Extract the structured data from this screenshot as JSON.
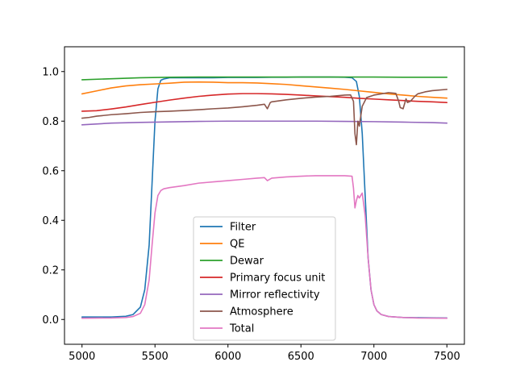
{
  "chart_data": {
    "type": "line",
    "title": "",
    "xlabel": "",
    "ylabel": "",
    "xlim": [
      4880,
      7620
    ],
    "ylim": [
      -0.1,
      1.1
    ],
    "xticks": [
      5000,
      5500,
      6000,
      6500,
      7000,
      7500
    ],
    "yticks": [
      0.0,
      0.2,
      0.4,
      0.6,
      0.8,
      1.0
    ],
    "xtick_labels": [
      "5000",
      "5500",
      "6000",
      "6500",
      "7000",
      "7500"
    ],
    "ytick_labels": [
      "0.0",
      "0.2",
      "0.4",
      "0.6",
      "0.8",
      "1.0"
    ],
    "grid": false,
    "legend_position": "lower-center",
    "series": [
      {
        "name": "Filter",
        "color": "#1f77b4",
        "x": [
          5000,
          5200,
          5300,
          5350,
          5400,
          5430,
          5460,
          5480,
          5500,
          5520,
          5540,
          5560,
          5600,
          5700,
          5800,
          5900,
          6000,
          6100,
          6200,
          6300,
          6400,
          6500,
          6600,
          6700,
          6800,
          6850,
          6880,
          6900,
          6920,
          6940,
          6960,
          6980,
          7000,
          7020,
          7050,
          7100,
          7200,
          7300,
          7500
        ],
        "y": [
          0.01,
          0.01,
          0.013,
          0.02,
          0.05,
          0.12,
          0.3,
          0.55,
          0.8,
          0.93,
          0.965,
          0.97,
          0.975,
          0.975,
          0.975,
          0.975,
          0.976,
          0.976,
          0.976,
          0.977,
          0.977,
          0.978,
          0.978,
          0.978,
          0.977,
          0.975,
          0.96,
          0.9,
          0.75,
          0.5,
          0.25,
          0.12,
          0.06,
          0.035,
          0.02,
          0.012,
          0.008,
          0.007,
          0.006
        ]
      },
      {
        "name": "QE",
        "color": "#ff7f0e",
        "x": [
          5000,
          5100,
          5200,
          5300,
          5400,
          5500,
          5600,
          5700,
          5800,
          5900,
          6000,
          6100,
          6200,
          6300,
          6400,
          6500,
          6600,
          6700,
          6800,
          6900,
          7000,
          7100,
          7200,
          7300,
          7400,
          7500
        ],
        "y": [
          0.91,
          0.922,
          0.934,
          0.942,
          0.947,
          0.95,
          0.953,
          0.957,
          0.958,
          0.957,
          0.955,
          0.955,
          0.954,
          0.951,
          0.948,
          0.943,
          0.938,
          0.933,
          0.928,
          0.922,
          0.916,
          0.91,
          0.905,
          0.9,
          0.896,
          0.893
        ]
      },
      {
        "name": "Dewar",
        "color": "#2ca02c",
        "x": [
          5000,
          5200,
          5400,
          5600,
          5800,
          6000,
          6200,
          6400,
          6600,
          6800,
          7000,
          7200,
          7400,
          7500
        ],
        "y": [
          0.967,
          0.971,
          0.975,
          0.977,
          0.978,
          0.978,
          0.978,
          0.978,
          0.978,
          0.978,
          0.978,
          0.977,
          0.977,
          0.977
        ]
      },
      {
        "name": "Primary focus unit",
        "color": "#d62728",
        "x": [
          5000,
          5100,
          5200,
          5300,
          5400,
          5500,
          5600,
          5700,
          5800,
          5900,
          6000,
          6100,
          6200,
          6300,
          6400,
          6500,
          6600,
          6700,
          6800,
          6900,
          7000,
          7100,
          7200,
          7300,
          7400,
          7500
        ],
        "y": [
          0.84,
          0.842,
          0.849,
          0.857,
          0.867,
          0.876,
          0.885,
          0.893,
          0.9,
          0.905,
          0.909,
          0.911,
          0.911,
          0.91,
          0.908,
          0.905,
          0.902,
          0.899,
          0.896,
          0.892,
          0.889,
          0.886,
          0.883,
          0.88,
          0.878,
          0.875
        ]
      },
      {
        "name": "Mirror reflectivity",
        "color": "#9467bd",
        "x": [
          5000,
          5200,
          5400,
          5600,
          5800,
          6000,
          6200,
          6400,
          6600,
          6800,
          7000,
          7200,
          7400,
          7500
        ],
        "y": [
          0.785,
          0.792,
          0.795,
          0.797,
          0.799,
          0.8,
          0.8,
          0.8,
          0.8,
          0.799,
          0.798,
          0.796,
          0.794,
          0.792
        ]
      },
      {
        "name": "Atmosphere",
        "color": "#8c564b",
        "x": [
          5000,
          5050,
          5100,
          5200,
          5300,
          5400,
          5500,
          5600,
          5700,
          5800,
          5900,
          6000,
          6100,
          6200,
          6250,
          6270,
          6290,
          6300,
          6400,
          6500,
          6600,
          6700,
          6800,
          6840,
          6860,
          6870,
          6880,
          6890,
          6900,
          6920,
          6950,
          7000,
          7050,
          7100,
          7150,
          7170,
          7180,
          7200,
          7220,
          7230,
          7250,
          7280,
          7300,
          7350,
          7400,
          7500
        ],
        "y": [
          0.812,
          0.815,
          0.82,
          0.826,
          0.83,
          0.835,
          0.838,
          0.84,
          0.843,
          0.846,
          0.85,
          0.853,
          0.858,
          0.864,
          0.868,
          0.85,
          0.875,
          0.878,
          0.886,
          0.892,
          0.897,
          0.9,
          0.905,
          0.906,
          0.88,
          0.75,
          0.705,
          0.8,
          0.78,
          0.86,
          0.895,
          0.905,
          0.91,
          0.915,
          0.912,
          0.88,
          0.855,
          0.85,
          0.89,
          0.875,
          0.88,
          0.9,
          0.91,
          0.918,
          0.923,
          0.928
        ]
      },
      {
        "name": "Total",
        "color": "#e377c2",
        "x": [
          5000,
          5200,
          5300,
          5350,
          5400,
          5430,
          5460,
          5480,
          5500,
          5520,
          5540,
          5560,
          5600,
          5700,
          5800,
          5900,
          6000,
          6100,
          6200,
          6250,
          6270,
          6300,
          6400,
          6500,
          6600,
          6700,
          6800,
          6850,
          6860,
          6870,
          6880,
          6890,
          6900,
          6920,
          6940,
          6960,
          6980,
          7000,
          7020,
          7050,
          7100,
          7200,
          7300,
          7500
        ],
        "y": [
          0.005,
          0.006,
          0.008,
          0.012,
          0.025,
          0.06,
          0.16,
          0.3,
          0.43,
          0.5,
          0.52,
          0.527,
          0.532,
          0.54,
          0.55,
          0.555,
          0.56,
          0.565,
          0.57,
          0.572,
          0.56,
          0.57,
          0.575,
          0.578,
          0.58,
          0.58,
          0.58,
          0.578,
          0.53,
          0.45,
          0.48,
          0.5,
          0.49,
          0.51,
          0.42,
          0.25,
          0.12,
          0.06,
          0.035,
          0.02,
          0.012,
          0.008,
          0.006,
          0.005
        ]
      }
    ]
  }
}
